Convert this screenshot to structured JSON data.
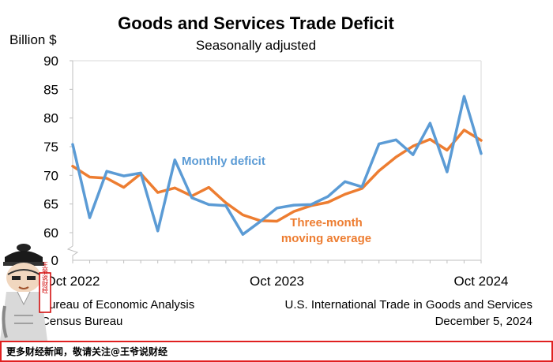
{
  "chart_data": {
    "type": "line",
    "title": "Goods and Services Trade Deficit",
    "subtitle": "Seasonally adjusted",
    "ylabel": "Billion $",
    "ylim": [
      55,
      90
    ],
    "yticks": [
      "90",
      "85",
      "80",
      "75",
      "70",
      "65",
      "60"
    ],
    "y_break_label": "0",
    "x_tick_labels": [
      {
        "label": "Oct 2022",
        "index": 0
      },
      {
        "label": "Oct 2023",
        "index": 12
      },
      {
        "label": "Oct 2024",
        "index": 24
      }
    ],
    "grid": false,
    "series": [
      {
        "name": "Monthly deficit",
        "color": "#5b9bd5",
        "values": [
          75.4,
          62.6,
          70.7,
          69.9,
          70.4,
          60.3,
          72.7,
          66.1,
          64.9,
          64.7,
          59.7,
          61.9,
          64.3,
          64.8,
          64.9,
          66.3,
          68.9,
          68.0,
          75.5,
          76.2,
          73.6,
          79.1,
          70.6,
          83.8,
          73.8
        ]
      },
      {
        "name": "Three-month moving average",
        "color": "#ed7d31",
        "values": [
          71.6,
          69.7,
          69.5,
          67.9,
          70.3,
          67.0,
          67.8,
          66.4,
          67.9,
          65.2,
          63.1,
          62.1,
          62.0,
          63.7,
          64.7,
          65.3,
          66.7,
          67.7,
          70.8,
          73.2,
          75.1,
          76.3,
          74.4,
          77.9,
          76.1
        ]
      }
    ],
    "annotations": {
      "monthly_label": "Monthly deficit",
      "avg_label_line1": "Three-month",
      "avg_label_line2": "moving average"
    }
  },
  "source": {
    "left_line1": "Bureau of Economic Analysis",
    "left_line2": "Census Bureau",
    "right_line1": "U.S. International Trade in Goods and Services",
    "right_line2": "December 5, 2024"
  },
  "footer": {
    "text": "更多财经新闻，敬请关注@王爷说财经"
  },
  "mascot": {
    "stamp_text": "王爷说财经"
  }
}
